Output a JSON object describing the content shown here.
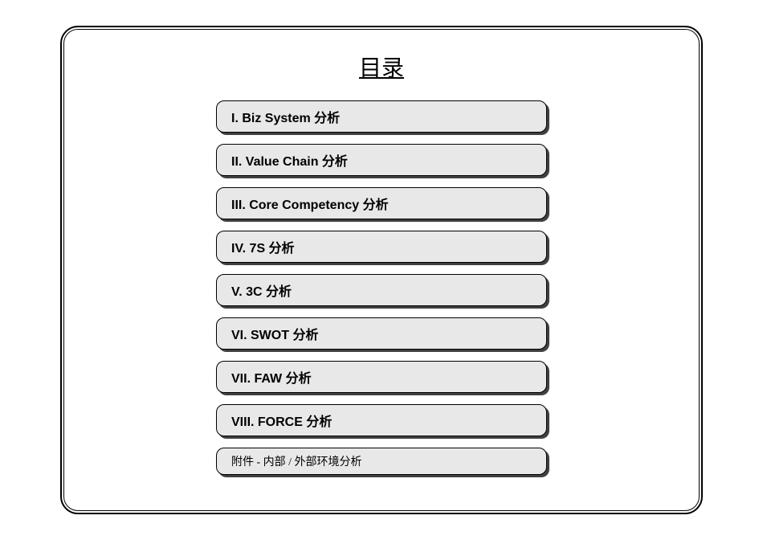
{
  "title": "目录",
  "items": [
    {
      "label": "I. Biz System  分析",
      "variant": "main"
    },
    {
      "label": "II. Value Chain  分析",
      "variant": "main"
    },
    {
      "label": "III. Core Competency  分析",
      "variant": "main"
    },
    {
      "label": "IV. 7S  分析",
      "variant": "main"
    },
    {
      "label": "V. 3C  分析",
      "variant": "main"
    },
    {
      "label": "VI. SWOT  分析",
      "variant": "main"
    },
    {
      "label": "VII. FAW  分析",
      "variant": "main"
    },
    {
      "label": "VIII. FORCE  分析",
      "variant": "main"
    },
    {
      "label": "附件 -  内部   /  外部环境分析",
      "variant": "appendix"
    }
  ],
  "styling": {
    "frame_border_color": "#000000",
    "frame_border_radius_outer": 22,
    "frame_border_radius_inner": 18,
    "item_background_color": "#e8e8e8",
    "item_border_color": "#000000",
    "item_border_radius": 10,
    "item_shadow": "3px 3px 0px rgba(0,0,0,0.75)",
    "item_width": 412,
    "item_height_main": 40,
    "item_height_appendix": 34,
    "item_gap": 14,
    "title_fontsize": 28,
    "item_fontsize_main": 16,
    "item_fontsize_appendix": 14,
    "background_color": "#ffffff",
    "text_color": "#000000"
  }
}
